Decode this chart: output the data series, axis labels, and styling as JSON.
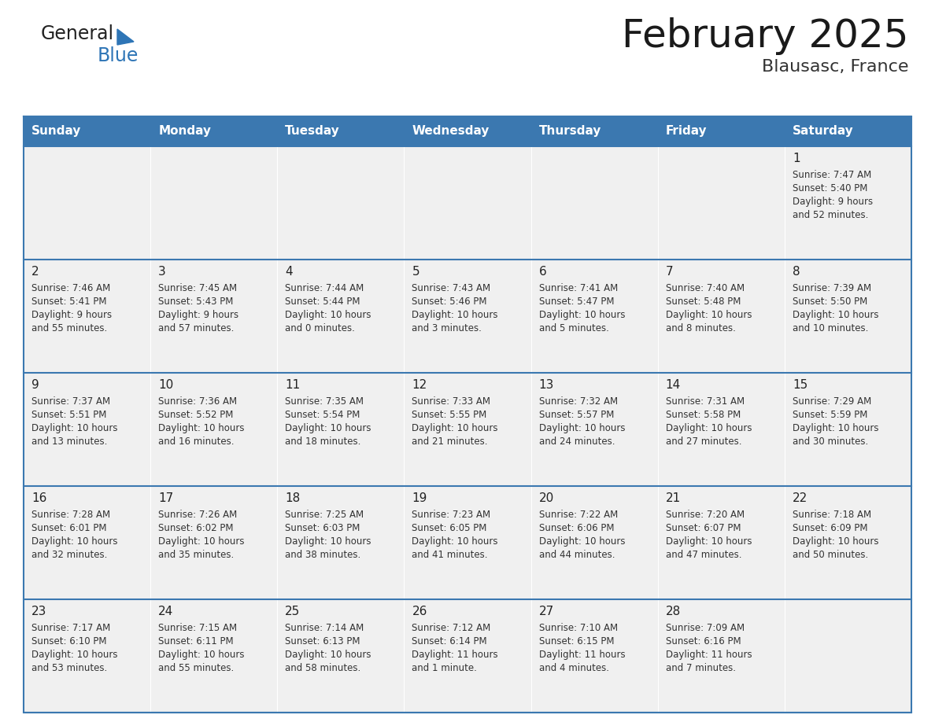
{
  "title": "February 2025",
  "subtitle": "Blausasc, France",
  "days_of_week": [
    "Sunday",
    "Monday",
    "Tuesday",
    "Wednesday",
    "Thursday",
    "Friday",
    "Saturday"
  ],
  "header_bg": "#3B78B0",
  "header_text": "#FFFFFF",
  "row_bg": "#F0F0F0",
  "cell_border": "#3B78B0",
  "day_num_color": "#222222",
  "info_text_color": "#333333",
  "logo_general_color": "#222222",
  "logo_blue_color": "#2E75B6",
  "calendar_data": [
    [
      null,
      null,
      null,
      null,
      null,
      null,
      {
        "day": 1,
        "rise": "7:47 AM",
        "set": "5:40 PM",
        "light": "9 hours\nand 52 minutes."
      }
    ],
    [
      {
        "day": 2,
        "rise": "7:46 AM",
        "set": "5:41 PM",
        "light": "9 hours\nand 55 minutes."
      },
      {
        "day": 3,
        "rise": "7:45 AM",
        "set": "5:43 PM",
        "light": "9 hours\nand 57 minutes."
      },
      {
        "day": 4,
        "rise": "7:44 AM",
        "set": "5:44 PM",
        "light": "10 hours\nand 0 minutes."
      },
      {
        "day": 5,
        "rise": "7:43 AM",
        "set": "5:46 PM",
        "light": "10 hours\nand 3 minutes."
      },
      {
        "day": 6,
        "rise": "7:41 AM",
        "set": "5:47 PM",
        "light": "10 hours\nand 5 minutes."
      },
      {
        "day": 7,
        "rise": "7:40 AM",
        "set": "5:48 PM",
        "light": "10 hours\nand 8 minutes."
      },
      {
        "day": 8,
        "rise": "7:39 AM",
        "set": "5:50 PM",
        "light": "10 hours\nand 10 minutes."
      }
    ],
    [
      {
        "day": 9,
        "rise": "7:37 AM",
        "set": "5:51 PM",
        "light": "10 hours\nand 13 minutes."
      },
      {
        "day": 10,
        "rise": "7:36 AM",
        "set": "5:52 PM",
        "light": "10 hours\nand 16 minutes."
      },
      {
        "day": 11,
        "rise": "7:35 AM",
        "set": "5:54 PM",
        "light": "10 hours\nand 18 minutes."
      },
      {
        "day": 12,
        "rise": "7:33 AM",
        "set": "5:55 PM",
        "light": "10 hours\nand 21 minutes."
      },
      {
        "day": 13,
        "rise": "7:32 AM",
        "set": "5:57 PM",
        "light": "10 hours\nand 24 minutes."
      },
      {
        "day": 14,
        "rise": "7:31 AM",
        "set": "5:58 PM",
        "light": "10 hours\nand 27 minutes."
      },
      {
        "day": 15,
        "rise": "7:29 AM",
        "set": "5:59 PM",
        "light": "10 hours\nand 30 minutes."
      }
    ],
    [
      {
        "day": 16,
        "rise": "7:28 AM",
        "set": "6:01 PM",
        "light": "10 hours\nand 32 minutes."
      },
      {
        "day": 17,
        "rise": "7:26 AM",
        "set": "6:02 PM",
        "light": "10 hours\nand 35 minutes."
      },
      {
        "day": 18,
        "rise": "7:25 AM",
        "set": "6:03 PM",
        "light": "10 hours\nand 38 minutes."
      },
      {
        "day": 19,
        "rise": "7:23 AM",
        "set": "6:05 PM",
        "light": "10 hours\nand 41 minutes."
      },
      {
        "day": 20,
        "rise": "7:22 AM",
        "set": "6:06 PM",
        "light": "10 hours\nand 44 minutes."
      },
      {
        "day": 21,
        "rise": "7:20 AM",
        "set": "6:07 PM",
        "light": "10 hours\nand 47 minutes."
      },
      {
        "day": 22,
        "rise": "7:18 AM",
        "set": "6:09 PM",
        "light": "10 hours\nand 50 minutes."
      }
    ],
    [
      {
        "day": 23,
        "rise": "7:17 AM",
        "set": "6:10 PM",
        "light": "10 hours\nand 53 minutes."
      },
      {
        "day": 24,
        "rise": "7:15 AM",
        "set": "6:11 PM",
        "light": "10 hours\nand 55 minutes."
      },
      {
        "day": 25,
        "rise": "7:14 AM",
        "set": "6:13 PM",
        "light": "10 hours\nand 58 minutes."
      },
      {
        "day": 26,
        "rise": "7:12 AM",
        "set": "6:14 PM",
        "light": "11 hours\nand 1 minute."
      },
      {
        "day": 27,
        "rise": "7:10 AM",
        "set": "6:15 PM",
        "light": "11 hours\nand 4 minutes."
      },
      {
        "day": 28,
        "rise": "7:09 AM",
        "set": "6:16 PM",
        "light": "11 hours\nand 7 minutes."
      },
      null
    ]
  ]
}
